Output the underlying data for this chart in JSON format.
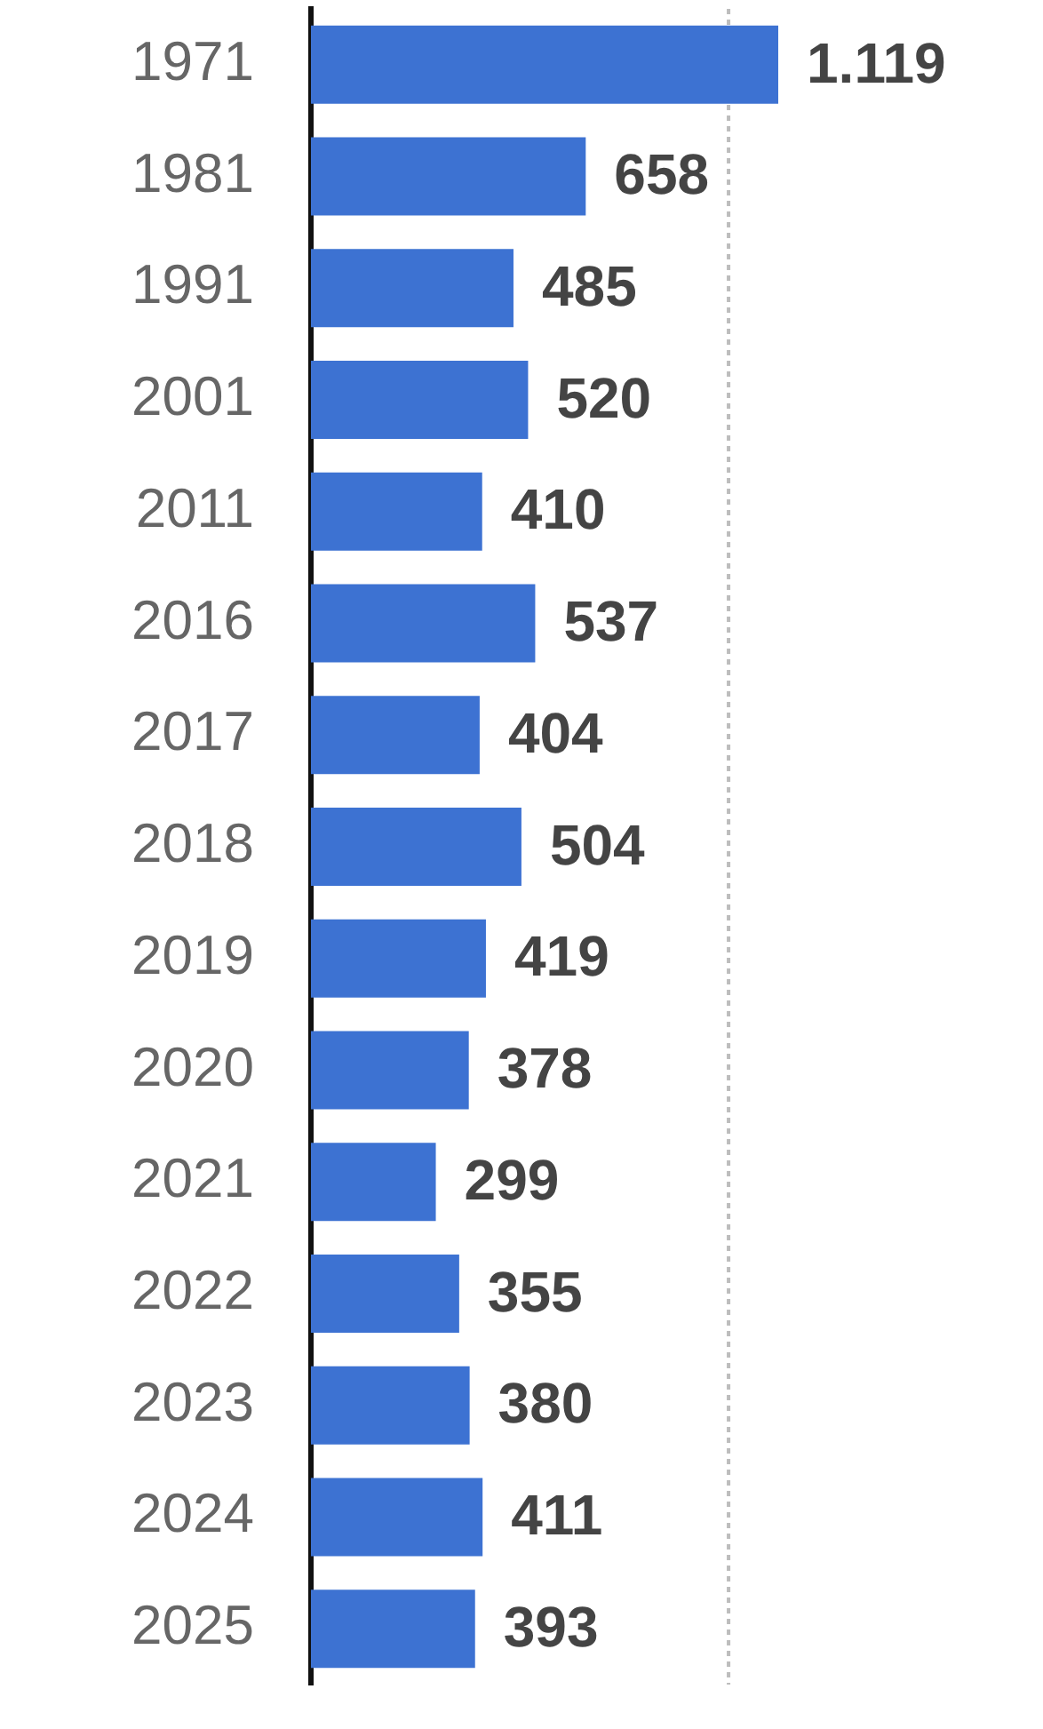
{
  "chart_data": {
    "type": "bar",
    "orientation": "horizontal",
    "categories": [
      "1971",
      "1981",
      "1991",
      "2001",
      "2011",
      "2016",
      "2017",
      "2018",
      "2019",
      "2020",
      "2021",
      "2022",
      "2023",
      "2024",
      "2025"
    ],
    "values": [
      1119,
      658,
      485,
      520,
      410,
      537,
      404,
      504,
      419,
      378,
      299,
      355,
      380,
      411,
      393
    ],
    "value_labels": [
      "1.119",
      "658",
      "485",
      "520",
      "410",
      "537",
      "404",
      "504",
      "419",
      "378",
      "299",
      "355",
      "380",
      "411",
      "393"
    ],
    "color": "#3d72d2",
    "ref_lines": [
      {
        "axis": "x",
        "value": 1000,
        "color": "#bdbdbd",
        "line_style": "dotted"
      }
    ],
    "tick_labels": "y"
  }
}
